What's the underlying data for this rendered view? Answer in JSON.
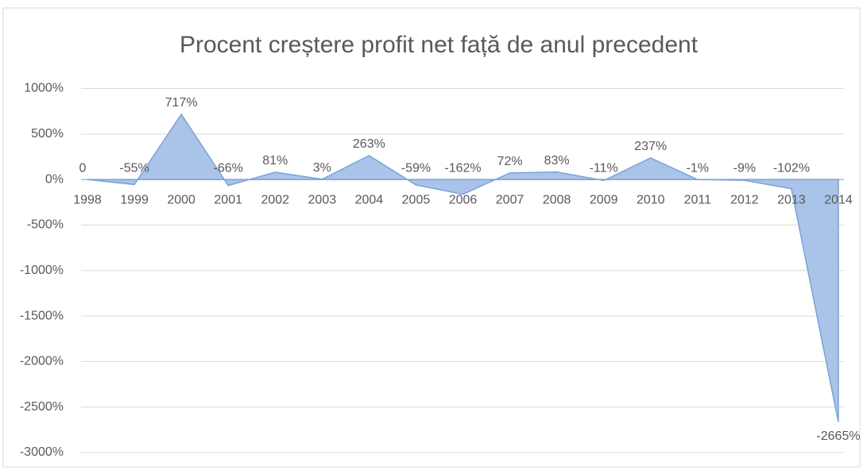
{
  "chart_data": {
    "type": "area",
    "title": "Procent creștere profit net față de anul precedent",
    "categories": [
      "1998",
      "1999",
      "2000",
      "2001",
      "2002",
      "2003",
      "2004",
      "2005",
      "2006",
      "2007",
      "2008",
      "2009",
      "2010",
      "2011",
      "2012",
      "2013",
      "2014"
    ],
    "values": [
      0,
      -55,
      717,
      -66,
      81,
      3,
      263,
      -59,
      -162,
      72,
      83,
      -11,
      237,
      -1,
      -9,
      -102,
      -2665
    ],
    "value_labels": [
      "0",
      "-55%",
      "717%",
      "-66%",
      "81%",
      "3%",
      "263%",
      "-59%",
      "-162%",
      "72%",
      "83%",
      "-11%",
      "237%",
      "-1%",
      "-9%",
      "-102%",
      "-2665%"
    ],
    "color": "#a9c4e8",
    "ylim": [
      -3000,
      1000
    ],
    "yticks": [
      {
        "value": -3000,
        "label": "-3000%"
      },
      {
        "value": -2500,
        "label": "-2500%"
      },
      {
        "value": -2000,
        "label": "-2000%"
      },
      {
        "value": -1500,
        "label": "-1500%"
      },
      {
        "value": -1000,
        "label": "-1000%"
      },
      {
        "value": -500,
        "label": "-500%"
      },
      {
        "value": 0,
        "label": "0%"
      },
      {
        "value": 500,
        "label": "500%"
      },
      {
        "value": 1000,
        "label": "1000%"
      }
    ],
    "grid": true
  }
}
